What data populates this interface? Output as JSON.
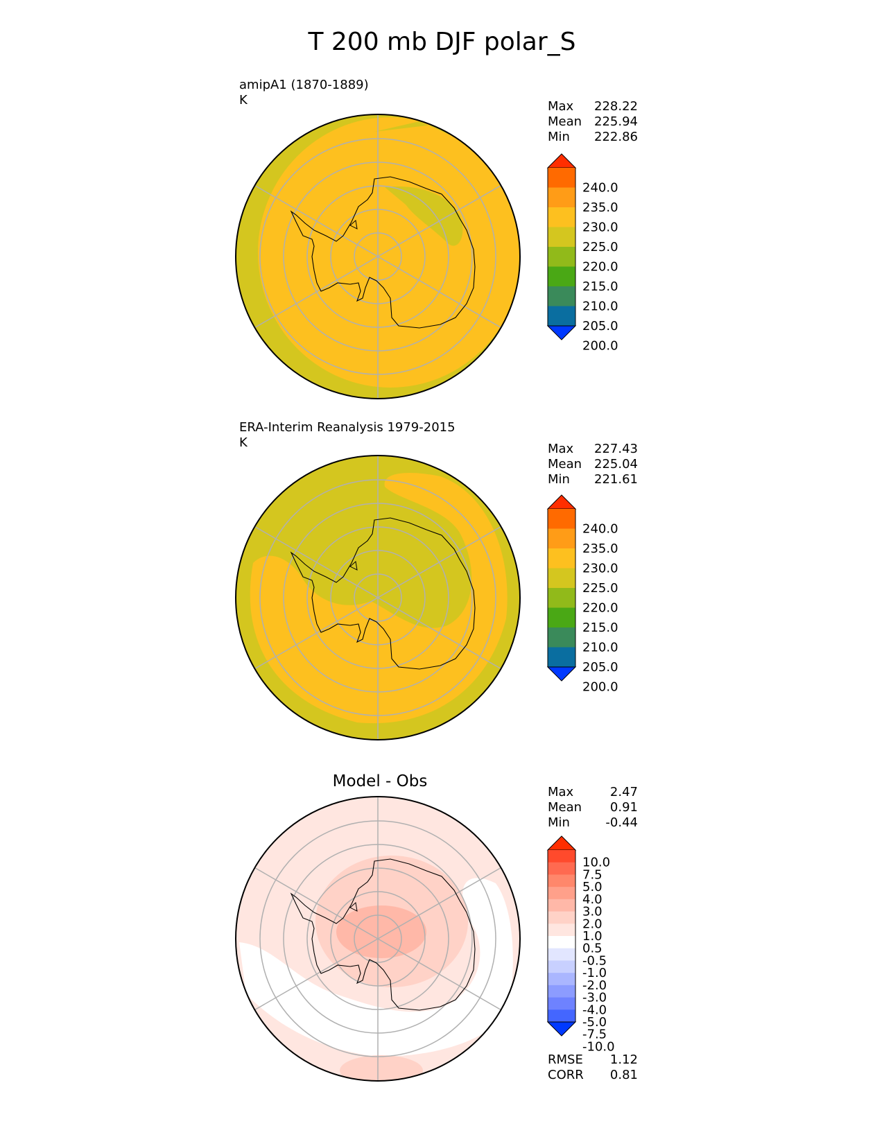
{
  "title": "T 200 mb DJF polar_S",
  "panels": [
    {
      "title": "amipA1 (1870-1889)",
      "units": "K",
      "stats": [
        {
          "label": "Max",
          "value": "228.22"
        },
        {
          "label": "Mean",
          "value": "225.94"
        },
        {
          "label": "Min",
          "value": "222.86"
        }
      ]
    },
    {
      "title": "ERA-Interim Reanalysis 1979-2015",
      "units": "K",
      "stats": [
        {
          "label": "Max",
          "value": "227.43"
        },
        {
          "label": "Mean",
          "value": "225.04"
        },
        {
          "label": "Min",
          "value": "221.61"
        }
      ]
    },
    {
      "title": "Model - Obs",
      "stats": [
        {
          "label": "Max",
          "value": "2.47"
        },
        {
          "label": "Mean",
          "value": "0.91"
        },
        {
          "label": "Min",
          "value": "-0.44"
        }
      ],
      "metrics": [
        {
          "label": "RMSE",
          "value": "1.12"
        },
        {
          "label": "CORR",
          "value": "0.81"
        }
      ]
    }
  ],
  "chart_data": [
    {
      "type": "heatmap",
      "projection": "south-polar-stereographic",
      "field": "T 200 mb DJF",
      "source": "amipA1 (1870-1889)",
      "units": "K",
      "colorbar": {
        "ticks": [
          "240.0",
          "235.0",
          "230.0",
          "225.0",
          "220.0",
          "215.0",
          "210.0",
          "205.0",
          "200.0"
        ],
        "colors": [
          "#ff2e00",
          "#ff6a00",
          "#ff9c17",
          "#fdc01f",
          "#d4c61f",
          "#91ba1a",
          "#4aa815",
          "#3a8a5a",
          "#0a6ea0",
          "#0039ff"
        ]
      },
      "regions": [
        {
          "level": "225-230",
          "color": "#fdc01f",
          "extent": "most of domain"
        },
        {
          "level": "220-225",
          "color": "#d4c61f",
          "extent": "outer rim and East Antarctic plateau"
        }
      ]
    },
    {
      "type": "heatmap",
      "projection": "south-polar-stereographic",
      "field": "T 200 mb DJF",
      "source": "ERA-Interim Reanalysis 1979-2015",
      "units": "K",
      "colorbar": {
        "ticks": [
          "240.0",
          "235.0",
          "230.0",
          "225.0",
          "220.0",
          "215.0",
          "210.0",
          "205.0",
          "200.0"
        ],
        "colors": [
          "#ff2e00",
          "#ff6a00",
          "#ff9c17",
          "#fdc01f",
          "#d4c61f",
          "#91ba1a",
          "#4aa815",
          "#3a8a5a",
          "#0a6ea0",
          "#0039ff"
        ]
      },
      "regions": [
        {
          "level": "225-230",
          "color": "#fdc01f",
          "extent": "mid-latitude ring"
        },
        {
          "level": "220-225",
          "color": "#d4c61f",
          "extent": "outer rim and Antarctic interior"
        }
      ]
    },
    {
      "type": "heatmap",
      "projection": "south-polar-stereographic",
      "field": "Model - Obs",
      "colorbar": {
        "ticks": [
          "10.0",
          "7.5",
          "5.0",
          "4.0",
          "3.0",
          "2.0",
          "1.0",
          "0.5",
          "-0.5",
          "-1.0",
          "-2.0",
          "-3.0",
          "-4.0",
          "-5.0",
          "-7.5",
          "-10.0"
        ],
        "colors": [
          "#ff2e00",
          "#ff4a2c",
          "#ff6a50",
          "#ff876b",
          "#ffa08a",
          "#ffb8a8",
          "#ffd2c7",
          "#ffe6e0",
          "#ffffff",
          "#e2e6ff",
          "#c8d0ff",
          "#aab6ff",
          "#8c9cff",
          "#6e82ff",
          "#4466ff",
          "#0039ff"
        ]
      },
      "regions": [
        {
          "level": "0.5 to 1.0",
          "color": "#ffe6e0",
          "extent": "outer ring"
        },
        {
          "level": "1.0 to 2.0",
          "color": "#ffd2c7",
          "extent": "Antarctic region"
        },
        {
          "level": "2.0 to 3.0",
          "color": "#ffb8a8",
          "extent": "pole center"
        },
        {
          "level": "-0.5 to 0.5",
          "color": "#ffffff",
          "extent": "Pacific/Atlantic sector bands"
        }
      ]
    }
  ]
}
